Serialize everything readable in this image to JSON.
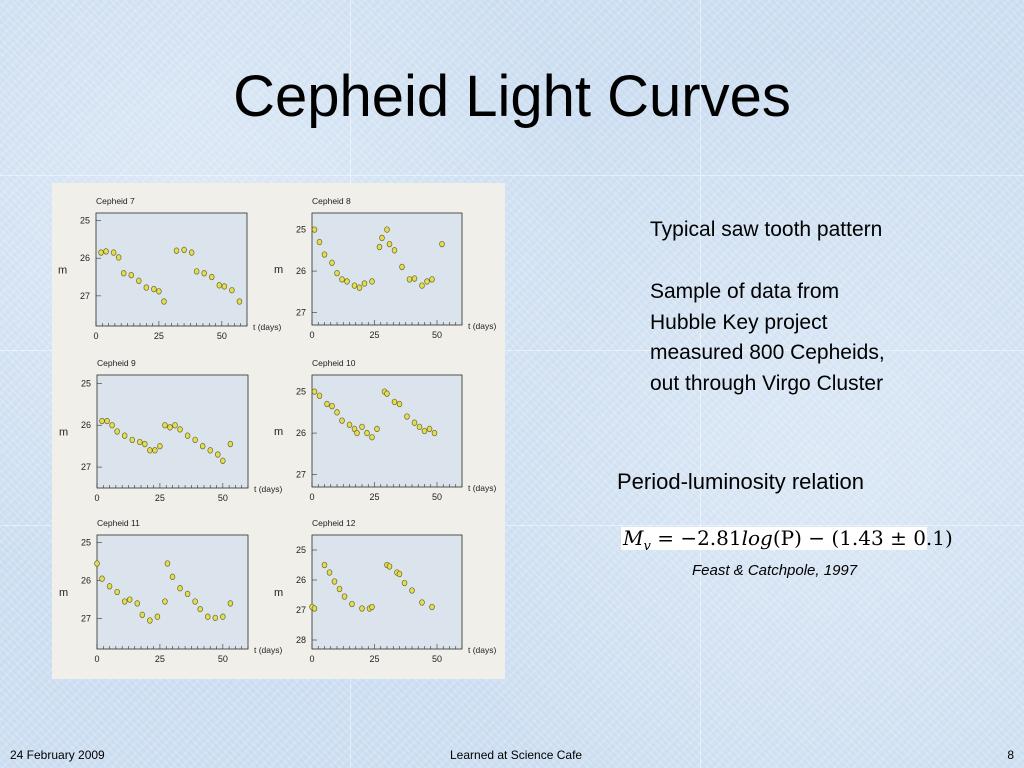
{
  "slide": {
    "title": "Cepheid Light Curves",
    "typical_pattern": "Typical saw tooth pattern",
    "sample_lines": [
      "Sample of data from",
      "Hubble Key project",
      "measured 800 Cepheids,",
      "out through Virgo Cluster"
    ],
    "period_luminosity": "Period-luminosity relation",
    "formula": {
      "lhs": "M",
      "sub": "v",
      "rhs": " = −2.81",
      "log": "log",
      "rest": "(P) − (1.43 ± 0.1)"
    },
    "citation": "Feast & Catchpole, 1997"
  },
  "footer": {
    "date": "24 February 2009",
    "event": "Learned at Science Cafe",
    "page": "8"
  },
  "colors": {
    "plot_background": "#dbe4ec",
    "point_fill": "#e4dc55",
    "point_stroke": "#6b6a24",
    "figure_background": "#f1efe9"
  },
  "chart_data": [
    {
      "type": "scatter",
      "title": "Cepheid 7",
      "xlabel": "t (days)",
      "ylabel": "m",
      "xlim": [
        0,
        60
      ],
      "ylim": [
        27.8,
        24.8
      ],
      "xticks": [
        0,
        25,
        50
      ],
      "yticks": [
        25,
        26,
        27
      ],
      "points": [
        [
          2,
          25.85
        ],
        [
          4,
          25.82
        ],
        [
          7,
          25.85
        ],
        [
          9,
          25.98
        ],
        [
          11,
          26.4
        ],
        [
          14,
          26.45
        ],
        [
          17,
          26.6
        ],
        [
          20,
          26.78
        ],
        [
          23,
          26.82
        ],
        [
          25,
          26.88
        ],
        [
          27,
          27.15
        ],
        [
          32,
          25.8
        ],
        [
          35,
          25.78
        ],
        [
          38,
          25.85
        ],
        [
          40,
          26.35
        ],
        [
          43,
          26.4
        ],
        [
          46,
          26.5
        ],
        [
          49,
          26.72
        ],
        [
          51,
          26.75
        ],
        [
          54,
          26.85
        ],
        [
          57,
          27.15
        ]
      ]
    },
    {
      "type": "scatter",
      "title": "Cepheid 8",
      "xlabel": "t (days)",
      "ylabel": "m",
      "xlim": [
        0,
        60
      ],
      "ylim": [
        27.3,
        24.6
      ],
      "xticks": [
        0,
        25,
        50
      ],
      "yticks": [
        25,
        26,
        27
      ],
      "points": [
        [
          1,
          25.0
        ],
        [
          3,
          25.3
        ],
        [
          5,
          25.6
        ],
        [
          8,
          25.8
        ],
        [
          10,
          26.05
        ],
        [
          12,
          26.2
        ],
        [
          14,
          26.25
        ],
        [
          17,
          26.35
        ],
        [
          19,
          26.4
        ],
        [
          21,
          26.3
        ],
        [
          24,
          26.25
        ],
        [
          27,
          25.42
        ],
        [
          28,
          25.2
        ],
        [
          30,
          25.0
        ],
        [
          31,
          25.35
        ],
        [
          33,
          25.5
        ],
        [
          36,
          25.9
        ],
        [
          39,
          26.2
        ],
        [
          41,
          26.18
        ],
        [
          44,
          26.35
        ],
        [
          46,
          26.25
        ],
        [
          48,
          26.2
        ],
        [
          52,
          25.35
        ]
      ]
    },
    {
      "type": "scatter",
      "title": "Cepheid 9",
      "xlabel": "t (days)",
      "ylabel": "m",
      "xlim": [
        0,
        60
      ],
      "ylim": [
        27.5,
        24.8
      ],
      "xticks": [
        0,
        25,
        50
      ],
      "yticks": [
        25,
        26,
        27
      ],
      "points": [
        [
          2,
          25.9
        ],
        [
          4,
          25.9
        ],
        [
          6,
          26.0
        ],
        [
          8,
          26.15
        ],
        [
          11,
          26.25
        ],
        [
          14,
          26.35
        ],
        [
          17,
          26.4
        ],
        [
          19,
          26.45
        ],
        [
          21,
          26.6
        ],
        [
          23,
          26.6
        ],
        [
          25,
          26.5
        ],
        [
          27,
          26.0
        ],
        [
          29,
          26.05
        ],
        [
          31,
          26.0
        ],
        [
          33,
          26.1
        ],
        [
          36,
          26.25
        ],
        [
          39,
          26.35
        ],
        [
          42,
          26.5
        ],
        [
          45,
          26.6
        ],
        [
          48,
          26.7
        ],
        [
          50,
          26.85
        ],
        [
          53,
          26.45
        ]
      ]
    },
    {
      "type": "scatter",
      "title": "Cepheid 10",
      "xlabel": "t (days)",
      "ylabel": "m",
      "xlim": [
        0,
        60
      ],
      "ylim": [
        27.3,
        24.6
      ],
      "xticks": [
        0,
        25,
        50
      ],
      "yticks": [
        25,
        26,
        27
      ],
      "points": [
        [
          1,
          25.0
        ],
        [
          3,
          25.1
        ],
        [
          6,
          25.3
        ],
        [
          8,
          25.35
        ],
        [
          10,
          25.5
        ],
        [
          12,
          25.7
        ],
        [
          15,
          25.8
        ],
        [
          17,
          25.9
        ],
        [
          18,
          26.0
        ],
        [
          20,
          25.85
        ],
        [
          22,
          26.0
        ],
        [
          24,
          26.1
        ],
        [
          26,
          25.9
        ],
        [
          29,
          25.0
        ],
        [
          30,
          25.05
        ],
        [
          33,
          25.25
        ],
        [
          35,
          25.3
        ],
        [
          38,
          25.6
        ],
        [
          41,
          25.75
        ],
        [
          43,
          25.85
        ],
        [
          45,
          25.95
        ],
        [
          47,
          25.9
        ],
        [
          49,
          26.0
        ]
      ]
    },
    {
      "type": "scatter",
      "title": "Cepheid 11",
      "xlabel": "t (days)",
      "ylabel": "m",
      "xlim": [
        0,
        60
      ],
      "ylim": [
        27.8,
        24.8
      ],
      "xticks": [
        0,
        25,
        50
      ],
      "yticks": [
        25,
        26,
        27
      ],
      "points": [
        [
          0,
          25.55
        ],
        [
          2,
          25.95
        ],
        [
          5,
          26.15
        ],
        [
          8,
          26.3
        ],
        [
          11,
          26.55
        ],
        [
          13,
          26.5
        ],
        [
          16,
          26.6
        ],
        [
          18,
          26.9
        ],
        [
          21,
          27.05
        ],
        [
          24,
          26.95
        ],
        [
          27,
          26.55
        ],
        [
          28,
          25.55
        ],
        [
          30,
          25.9
        ],
        [
          33,
          26.2
        ],
        [
          36,
          26.35
        ],
        [
          39,
          26.55
        ],
        [
          41,
          26.75
        ],
        [
          44,
          26.95
        ],
        [
          47,
          26.98
        ],
        [
          50,
          26.95
        ],
        [
          53,
          26.6
        ]
      ]
    },
    {
      "type": "scatter",
      "title": "Cepheid 12",
      "xlabel": "t (days)",
      "ylabel": "m",
      "xlim": [
        0,
        60
      ],
      "ylim": [
        28.3,
        24.5
      ],
      "xticks": [
        0,
        25,
        50
      ],
      "yticks": [
        25,
        26,
        27,
        28
      ],
      "points": [
        [
          0,
          26.9
        ],
        [
          1,
          26.95
        ],
        [
          5,
          25.5
        ],
        [
          7,
          25.75
        ],
        [
          9,
          26.05
        ],
        [
          11,
          26.3
        ],
        [
          13,
          26.55
        ],
        [
          16,
          26.8
        ],
        [
          20,
          26.95
        ],
        [
          23,
          26.95
        ],
        [
          24,
          26.9
        ],
        [
          30,
          25.5
        ],
        [
          31,
          25.55
        ],
        [
          34,
          25.75
        ],
        [
          35,
          25.8
        ],
        [
          37,
          26.1
        ],
        [
          40,
          26.35
        ],
        [
          44,
          26.75
        ],
        [
          48,
          26.9
        ]
      ]
    }
  ]
}
